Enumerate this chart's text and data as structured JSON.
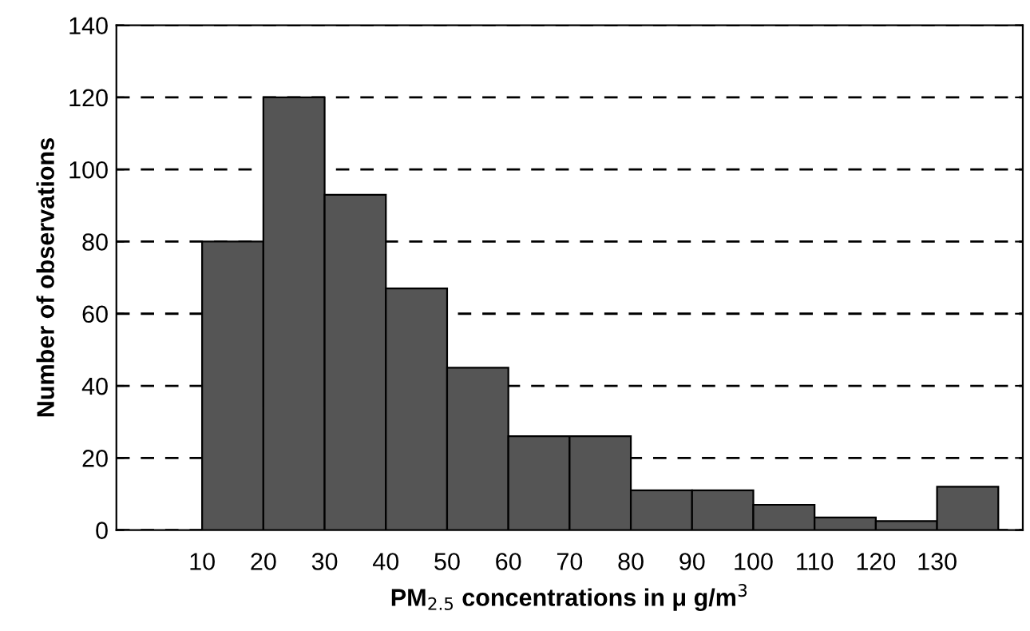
{
  "chart_data": {
    "type": "histogram",
    "xlabel": "PM$_{2.5}$ concentrations in μ g/m$^{3}$",
    "ylabel": "Number of observations",
    "bins": [
      10,
      20,
      30,
      40,
      50,
      60,
      70,
      80,
      90,
      100,
      110,
      120,
      130,
      140
    ],
    "values": [
      80,
      120,
      93,
      67,
      45,
      26,
      26,
      11,
      11,
      7,
      3.5,
      2.5,
      12
    ],
    "color": "#555555",
    "xlim": [
      -4,
      144
    ],
    "xticks": [
      10,
      20,
      30,
      40,
      50,
      60,
      70,
      80,
      90,
      100,
      110,
      120,
      130
    ],
    "ylim": [
      0,
      140
    ],
    "yticks": [
      0,
      20,
      40,
      60,
      80,
      100,
      120,
      140
    ],
    "grid": "y",
    "line_style": "dashed"
  }
}
